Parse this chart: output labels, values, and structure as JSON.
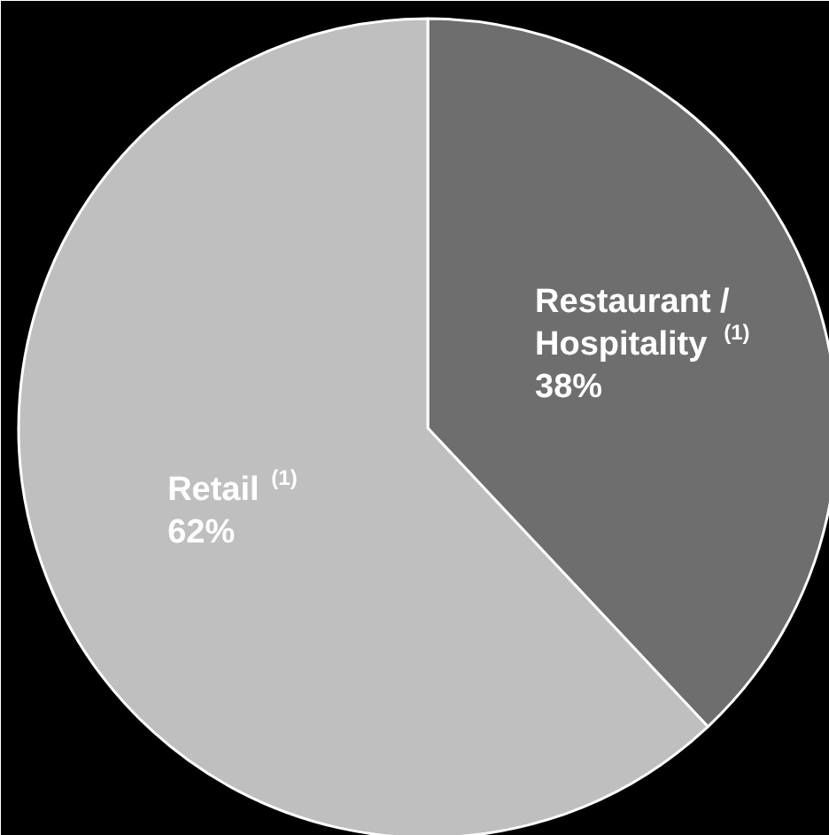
{
  "chart_data": {
    "type": "pie",
    "categories": [
      "Restaurant / Hospitality $^{(1)}$",
      "Retail $^{(1)}$"
    ],
    "values": [
      38,
      62
    ],
    "colors": [
      "#6e6e6e",
      "#bfbfbf"
    ],
    "value_labels": [
      "38%",
      "62%"
    ]
  }
}
